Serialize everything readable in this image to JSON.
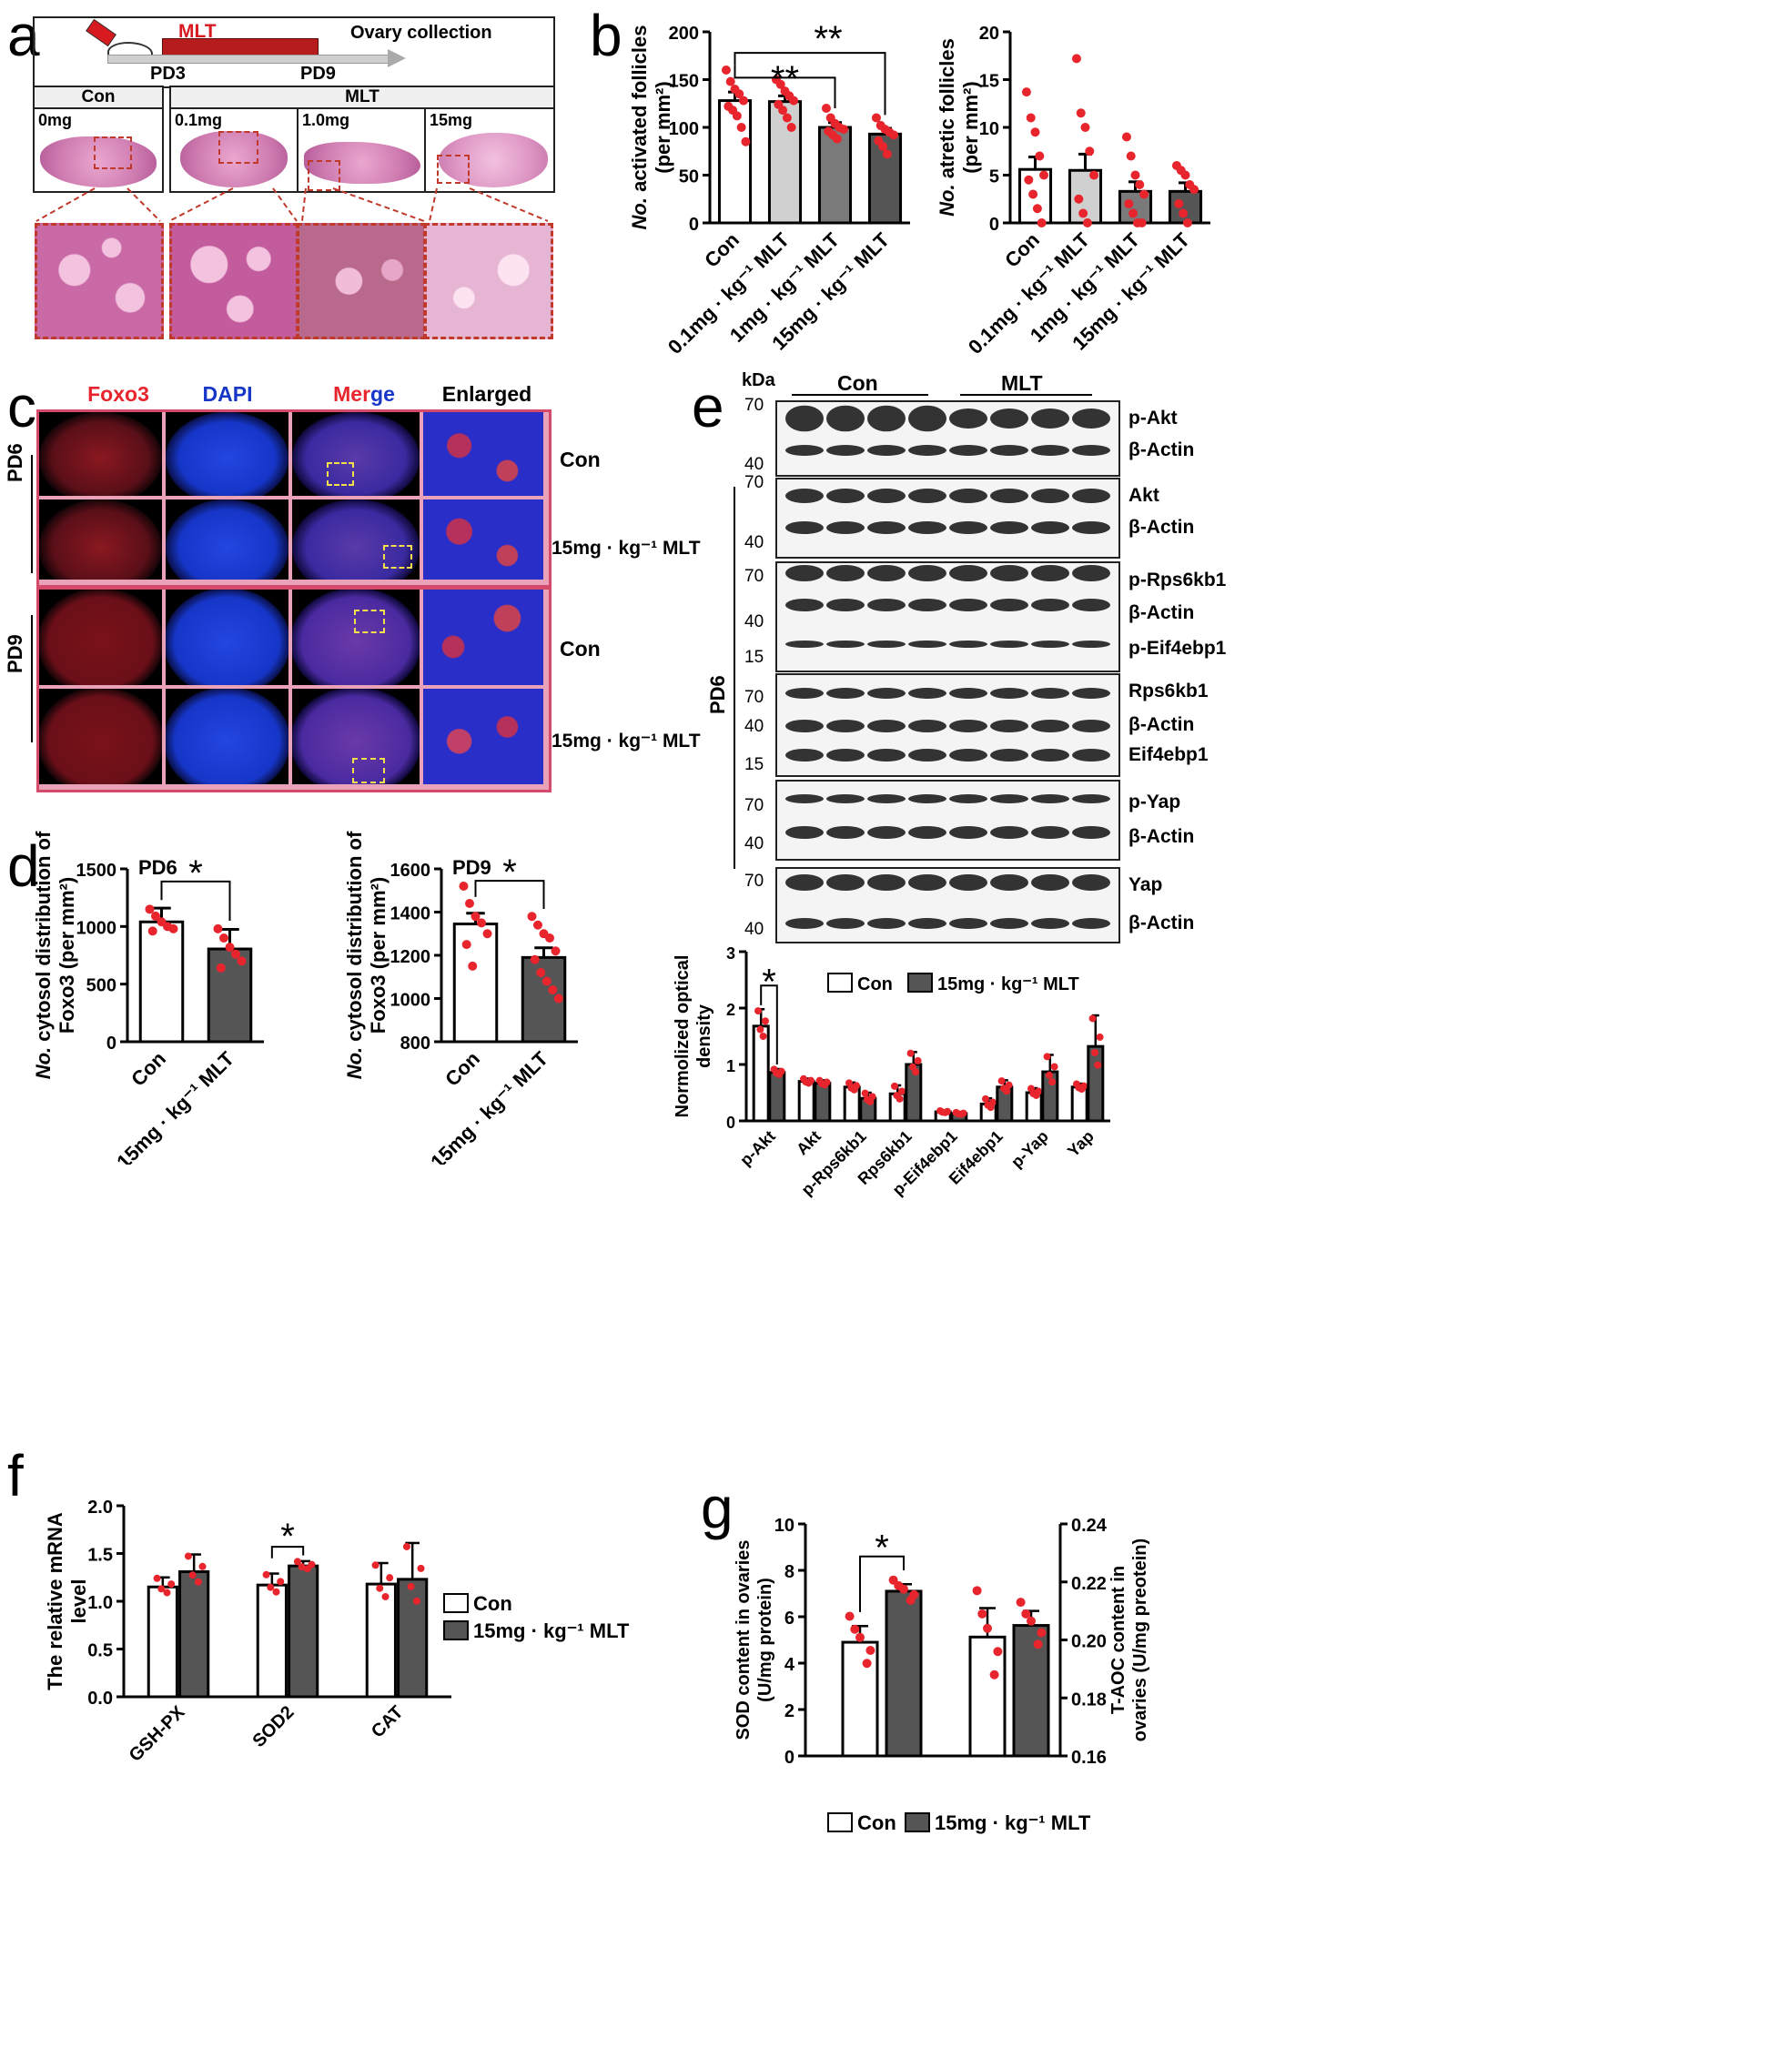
{
  "panel_letters": {
    "a": "a",
    "b": "b",
    "c": "c",
    "d": "d",
    "e": "e",
    "f": "f",
    "g": "g"
  },
  "a": {
    "mlt": "MLT",
    "ovary_collection": "Ovary collection",
    "pd3": "PD3",
    "pd9": "PD9",
    "con": "Con",
    "mlt_group": "MLT",
    "doses": [
      "0mg",
      "0.1mg",
      "1.0mg",
      "15mg"
    ]
  },
  "c": {
    "cols": [
      "Foxo3",
      "DAPI",
      "Merge",
      "Enlarged"
    ],
    "merge_parts": [
      "Mer",
      "ge"
    ],
    "rows": [
      "Con",
      "15mg · kg⁻¹ MLT",
      "Con",
      "15mg · kg⁻¹ MLT"
    ],
    "pd6": "PD6",
    "pd9": "PD9"
  },
  "e": {
    "kda": "kDa",
    "con": "Con",
    "mlt": "MLT",
    "pd6": "PD6",
    "blot_labels": [
      "p-Akt",
      "β-Actin",
      "Akt",
      "β-Actin",
      "p-Rps6kb1",
      "β-Actin",
      "p-Eif4ebp1",
      "Rps6kb1",
      "β-Actin",
      "Eif4ebp1",
      "p-Yap",
      "β-Actin",
      "Yap",
      "β-Actin"
    ],
    "markers": [
      "70",
      "40",
      "70",
      "40",
      "70",
      "40",
      "15",
      "70",
      "40",
      "15",
      "70",
      "40",
      "70",
      "40"
    ]
  },
  "chart_data": [
    {
      "id": "b1",
      "type": "bar",
      "categories": [
        "Con",
        "0.1mg · kg⁻¹ MLT",
        "1mg · kg⁻¹ MLT",
        "15mg · kg⁻¹ MLT"
      ],
      "values": [
        128,
        127,
        100,
        93
      ],
      "errors": [
        9,
        6,
        5,
        6
      ],
      "colors": [
        "#ffffff",
        "#d0d0d0",
        "#7a7a7a",
        "#555555"
      ],
      "points": [
        [
          160,
          148,
          140,
          135,
          128,
          122,
          118,
          112,
          100,
          85
        ],
        [
          150,
          145,
          138,
          133,
          128,
          124,
          118,
          110,
          100
        ],
        [
          120,
          110,
          104,
          100,
          98,
          96,
          92,
          88
        ],
        [
          110,
          102,
          98,
          95,
          92,
          86,
          80,
          72
        ]
      ],
      "ylabel_italic": "No.",
      "ylabel_rest": " activated follicles",
      "ylabel2": "(per mm²)",
      "ylim": [
        0,
        200
      ],
      "yticks": [
        "0",
        "50",
        "100",
        "150",
        "200"
      ],
      "sig": [
        "**",
        "**"
      ]
    },
    {
      "id": "b2",
      "type": "bar",
      "categories": [
        "Con",
        "0.1mg · kg⁻¹ MLT",
        "1mg · kg⁻¹ MLT",
        "15mg · kg⁻¹ MLT"
      ],
      "values": [
        5.6,
        5.5,
        3.3,
        3.3
      ],
      "errors": [
        1.3,
        1.7,
        1.0,
        0.9
      ],
      "colors": [
        "#ffffff",
        "#d0d0d0",
        "#7a7a7a",
        "#555555"
      ],
      "points": [
        [
          13.7,
          11.0,
          9.5,
          7.0,
          5.0,
          4.5,
          3.0,
          1.5,
          0
        ],
        [
          17.2,
          11.5,
          10.0,
          7.5,
          5.0,
          2.5,
          1.0,
          0
        ],
        [
          9.0,
          7.0,
          5.0,
          4.0,
          3.0,
          2.0,
          1.0,
          0,
          0
        ],
        [
          6.0,
          5.5,
          5.0,
          4.0,
          3.5,
          2.0,
          1.0,
          0
        ]
      ],
      "ylabel_italic": "No.",
      "ylabel_rest": " atretic follicles",
      "ylabel2": "(per mm²)",
      "ylim": [
        0,
        20
      ],
      "yticks": [
        "0",
        "5",
        "10",
        "15",
        "20"
      ]
    },
    {
      "id": "d1",
      "type": "bar",
      "categories": [
        "Con",
        "15mg · kg⁻¹ MLT"
      ],
      "values": [
        1040,
        805
      ],
      "errors": [
        120,
        170
      ],
      "colors": [
        "#ffffff",
        "#555555"
      ],
      "points": [
        [
          1150,
          1090,
          1040,
          1000,
          980,
          960
        ],
        [
          980,
          900,
          820,
          760,
          700,
          640
        ]
      ],
      "ylabel_italic": "No.",
      "ylabel_rest": " cytosol distribution of",
      "ylabel2": "Foxo3 (per mm²)",
      "ylim": [
        0,
        1500
      ],
      "yticks": [
        "0",
        "500",
        "1000",
        "1500"
      ],
      "title": "PD6",
      "sig": [
        "*"
      ]
    },
    {
      "id": "d2",
      "type": "bar",
      "categories": [
        "Con",
        "15mg · kg⁻¹ MLT"
      ],
      "values": [
        1345,
        1190
      ],
      "errors": [
        50,
        45
      ],
      "colors": [
        "#ffffff",
        "#555555"
      ],
      "points": [
        [
          1520,
          1440,
          1380,
          1350,
          1300,
          1250,
          1150
        ],
        [
          1380,
          1340,
          1300,
          1280,
          1220,
          1180,
          1120,
          1080,
          1040,
          1000
        ]
      ],
      "ylabel_italic": "No.",
      "ylabel_rest": " cytosol distribution of",
      "ylabel2": "Foxo3 (per mm²)",
      "ylim": [
        800,
        1600
      ],
      "yticks": [
        "800",
        "1000",
        "1200",
        "1400",
        "1600"
      ],
      "title": "PD9",
      "sig": [
        "*"
      ]
    },
    {
      "id": "e2",
      "type": "bar",
      "categories": [
        "p-Akt",
        "Akt",
        "p-Rps6kb1",
        "Rps6kb1",
        "p-Eif4ebp1",
        "Eif4ebp1",
        "p-Yap",
        "Yap"
      ],
      "series": [
        {
          "name": "Con",
          "values": [
            1.68,
            0.7,
            0.6,
            0.48,
            0.16,
            0.3,
            0.5,
            0.6
          ],
          "errors": [
            0.3,
            0.05,
            0.08,
            0.15,
            0.02,
            0.1,
            0.08,
            0.06
          ]
        },
        {
          "name": "15mg · kg⁻¹ MLT",
          "values": [
            0.86,
            0.67,
            0.4,
            1.0,
            0.13,
            0.6,
            0.87,
            1.32
          ],
          "errors": [
            0.06,
            0.05,
            0.1,
            0.22,
            0.02,
            0.12,
            0.3,
            0.55
          ]
        }
      ],
      "ylabel": "Normolized optical density",
      "ylim": [
        0,
        3
      ],
      "yticks": [
        "0",
        "1",
        "2",
        "3"
      ],
      "sig": [
        "*"
      ]
    },
    {
      "id": "f",
      "type": "bar",
      "categories": [
        "GSH-PX",
        "SOD2",
        "CAT"
      ],
      "series": [
        {
          "name": "Con",
          "values": [
            1.15,
            1.17,
            1.18
          ],
          "errors": [
            0.1,
            0.12,
            0.22
          ]
        },
        {
          "name": "15mg · kg⁻¹ MLT",
          "values": [
            1.31,
            1.37,
            1.23
          ],
          "errors": [
            0.18,
            0.05,
            0.38
          ]
        }
      ],
      "ylabel": "The relative mRNA level",
      "ylim": [
        0,
        2
      ],
      "yticks": [
        "0.0",
        "0.5",
        "1.0",
        "1.5",
        "2.0"
      ],
      "sig": [
        "*"
      ]
    },
    {
      "id": "g",
      "type": "bar",
      "categories": [
        "SOD",
        "T-AOC"
      ],
      "series": [
        {
          "name": "Con",
          "values": [
            4.9,
            0.201
          ],
          "errors": [
            0.7,
            0.01
          ]
        },
        {
          "name": "15mg · kg⁻¹ MLT",
          "values": [
            7.1,
            0.205
          ],
          "errors": [
            0.3,
            0.005
          ]
        }
      ],
      "ylabel_left": "SOD content in ovaries (U/mg protein)",
      "ylabel_right": "T-AOC content in ovaries (U/mg preotein)",
      "ylim_left": [
        0,
        10
      ],
      "yticks_left": [
        "0",
        "2",
        "4",
        "6",
        "8",
        "10"
      ],
      "ylim_right": [
        0.16,
        0.24
      ],
      "yticks_right": [
        "0.16",
        "0.18",
        "0.20",
        "0.22",
        "0.24"
      ],
      "sig": [
        "*"
      ]
    }
  ],
  "legend": {
    "con": "Con",
    "mlt": "15mg · kg⁻¹ MLT"
  },
  "colors": {
    "red_dot": "#e8252d",
    "dark_bar": "#555555",
    "he_pink": "#d98bb8",
    "fluor_red": "#b51a24",
    "fluor_blue": "#1636c8"
  }
}
